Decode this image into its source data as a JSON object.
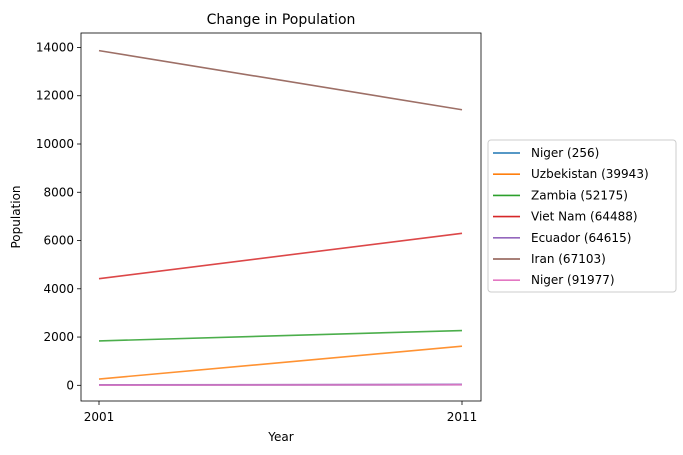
{
  "chart_data": {
    "type": "line",
    "title": "Change in Population",
    "xlabel": "Year",
    "ylabel": "Population",
    "x": [
      2001,
      2011
    ],
    "x_ticks": [
      "2001",
      "2011"
    ],
    "y_ticks": [
      0,
      2000,
      4000,
      6000,
      8000,
      10000,
      12000,
      14000
    ],
    "ylim": [
      -650,
      14600
    ],
    "grid": false,
    "legend_position": "right-outside",
    "series": [
      {
        "name": "Niger (256)",
        "values": [
          10,
          25
        ],
        "color": "#1f77b4"
      },
      {
        "name": "Uzbekistan (39943)",
        "values": [
          260,
          1620
        ],
        "color": "#ff7f0e"
      },
      {
        "name": "Zambia (52175)",
        "values": [
          1840,
          2270
        ],
        "color": "#2ca02c"
      },
      {
        "name": "Viet Nam (64488)",
        "values": [
          4420,
          6300
        ],
        "color": "#d62728"
      },
      {
        "name": "Ecuador (64615)",
        "values": [
          20,
          40
        ],
        "color": "#9467bd"
      },
      {
        "name": "Iran (67103)",
        "values": [
          13870,
          11420
        ],
        "color": "#8c564b"
      },
      {
        "name": "Niger (91977)",
        "values": [
          5,
          20
        ],
        "color": "#e377c2"
      }
    ]
  }
}
